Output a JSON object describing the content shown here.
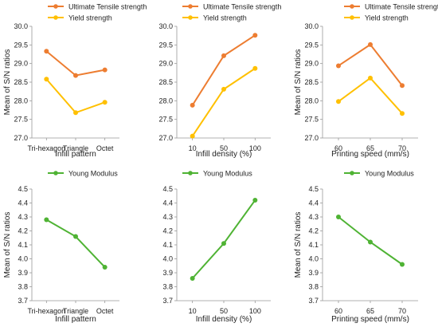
{
  "colors": {
    "ultimate": "#ED7D31",
    "yield": "#FFC000",
    "young": "#4FB334"
  },
  "chart_data": [
    {
      "type": "line",
      "categories": [
        "Tri-hexagon",
        "Triangle",
        "Octet"
      ],
      "xlabel": "Infill pattern",
      "ylabel": "Mean of S/N ratios",
      "ylim": [
        27.0,
        30.0
      ],
      "yticks": [
        "27.0",
        "27.5",
        "28.0",
        "28.5",
        "29.0",
        "29.5",
        "30.0"
      ],
      "legend": "top",
      "series": [
        {
          "name": "Ultimate Tensile strength",
          "values": [
            29.33,
            28.68,
            28.83
          ],
          "color": "#ED7D31"
        },
        {
          "name": "Yield strength",
          "values": [
            28.58,
            27.68,
            27.96
          ],
          "color": "#FFC000"
        }
      ]
    },
    {
      "type": "line",
      "categories": [
        "10",
        "50",
        "100"
      ],
      "xlabel": "Infill density (%)",
      "ylabel": "",
      "ylim": [
        27.0,
        30.0
      ],
      "yticks": [
        "27.0",
        "27.5",
        "28.0",
        "28.5",
        "29.0",
        "29.5",
        "30.0"
      ],
      "legend": "top",
      "series": [
        {
          "name": "Ultimate Tensile strength",
          "values": [
            27.88,
            29.21,
            29.76
          ],
          "color": "#ED7D31"
        },
        {
          "name": "Yield strength",
          "values": [
            27.05,
            28.31,
            28.87
          ],
          "color": "#FFC000"
        }
      ]
    },
    {
      "type": "line",
      "categories": [
        "60",
        "65",
        "70"
      ],
      "xlabel": "Printing speed (mm/s)",
      "ylabel": "Mean of S/N ratios",
      "ylim": [
        27.0,
        30.0
      ],
      "yticks": [
        "27.0",
        "27.5",
        "28.0",
        "28.5",
        "29.0",
        "29.5",
        "30.0"
      ],
      "legend": "top",
      "series": [
        {
          "name": "Ultimate Tensile strength",
          "values": [
            28.94,
            29.51,
            28.41
          ],
          "color": "#ED7D31"
        },
        {
          "name": "Yield strength",
          "values": [
            27.98,
            28.61,
            27.66
          ],
          "color": "#FFC000"
        }
      ]
    },
    {
      "type": "line",
      "categories": [
        "Tri-hexagon",
        "Triangle",
        "Octet"
      ],
      "xlabel": "Infill pattern",
      "ylabel": "Mean of S/N ratios",
      "ylim": [
        3.7,
        4.5
      ],
      "yticks": [
        "3.7",
        "3.8",
        "3.9",
        "4.0",
        "4.1",
        "4.2",
        "4.3",
        "4.4",
        "4.5"
      ],
      "legend": "top",
      "series": [
        {
          "name": "Young Modulus",
          "values": [
            4.28,
            4.16,
            3.94
          ],
          "color": "#4FB334"
        }
      ]
    },
    {
      "type": "line",
      "categories": [
        "10",
        "50",
        "100"
      ],
      "xlabel": "Infill density (%)",
      "ylabel": "",
      "ylim": [
        3.7,
        4.5
      ],
      "yticks": [
        "3.7",
        "3.8",
        "3.9",
        "4.0",
        "4.1",
        "4.2",
        "4.3",
        "4.4",
        "4.5"
      ],
      "legend": "top",
      "series": [
        {
          "name": "Young Modulus",
          "values": [
            3.86,
            4.11,
            4.42
          ],
          "color": "#4FB334"
        }
      ]
    },
    {
      "type": "line",
      "categories": [
        "60",
        "65",
        "70"
      ],
      "xlabel": "Printing speed (mm/s)",
      "ylabel": "Mean of S/N ratios",
      "ylim": [
        3.7,
        4.5
      ],
      "yticks": [
        "3.7",
        "3.8",
        "3.9",
        "4.0",
        "4.1",
        "4.2",
        "4.3",
        "4.4",
        "4.5"
      ],
      "legend": "top",
      "series": [
        {
          "name": "Young Modulus",
          "values": [
            4.3,
            4.12,
            3.96
          ],
          "color": "#4FB334"
        }
      ]
    }
  ]
}
